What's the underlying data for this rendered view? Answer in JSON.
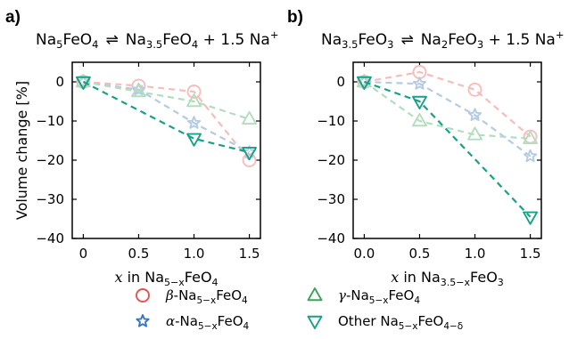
{
  "panels": [
    {
      "letter": "a)",
      "title_lhs": {
        "base": "Na",
        "sub1": "5",
        "rest": "FeO",
        "sub2": "4"
      },
      "title_arrow": "⇌",
      "title_rhs": {
        "base": "Na",
        "sub1": "3.5",
        "rest": "FeO",
        "sub2": "4",
        "tail": "+ 1.5 Na",
        "sup": "+"
      },
      "xlabel": {
        "italic": "x",
        "pre": " in Na",
        "sub": "5−x",
        "post": "FeO",
        "sub2": "4"
      },
      "ylabel": "Volume change [%]"
    },
    {
      "letter": "b)",
      "title_lhs": {
        "base": "Na",
        "sub1": "3.5",
        "rest": "FeO",
        "sub2": "3"
      },
      "title_arrow": "⇌",
      "title_rhs": {
        "base": "Na",
        "sub1": "2",
        "rest": "FeO",
        "sub2": "3",
        "tail": "+ 1.5 Na",
        "sup": "+"
      },
      "xlabel": {
        "italic": "x",
        "pre": " in Na",
        "sub": "3.5−x",
        "post": "FeO",
        "sub2": "3"
      },
      "ylabel": ""
    }
  ],
  "legend": [
    {
      "greek": "β",
      "base": "-Na",
      "sub": "5−x",
      "rest": "FeO",
      "sub2": "4",
      "extra": "",
      "marker": "circle"
    },
    {
      "greek": "γ",
      "base": "-Na",
      "sub": "5−x",
      "rest": "FeO",
      "sub2": "4",
      "extra": "",
      "marker": "triangle-up"
    },
    {
      "greek": "α",
      "base": "-Na",
      "sub": "5−x",
      "rest": "FeO",
      "sub2": "4",
      "extra": "",
      "marker": "star"
    },
    {
      "greek": "",
      "base": "Other Na",
      "sub": "5−x",
      "rest": "FeO",
      "sub2": "4−δ",
      "extra": "",
      "marker": "triangle-down"
    }
  ],
  "chart_data": [
    {
      "type": "line",
      "panel": "a)",
      "xlim": [
        -0.1,
        1.6
      ],
      "ylim": [
        -40,
        5
      ],
      "xticks": [
        0,
        0.5,
        1.0,
        1.5
      ],
      "xtick_labels": [
        "0",
        "0.5",
        "1.0",
        "1.5"
      ],
      "yticks": [
        0,
        -10,
        -20,
        -30,
        -40
      ],
      "ytick_labels": [
        "0",
        "−10",
        "−20",
        "−30",
        "−40"
      ],
      "series": [
        {
          "name": "β-Na5−xFeO4",
          "marker": "circle",
          "color": "#e8514e",
          "faded": true,
          "x": [
            0,
            0.5,
            1.0,
            1.5
          ],
          "y": [
            0,
            -1.0,
            -2.5,
            -20.0
          ]
        },
        {
          "name": "α-Na5−xFeO4",
          "marker": "star",
          "color": "#3a74bd",
          "faded": true,
          "x": [
            0,
            0.5,
            1.0,
            1.5
          ],
          "y": [
            0,
            -2.0,
            -10.5,
            -18.0
          ]
        },
        {
          "name": "γ-Na5−xFeO4",
          "marker": "triangle-up",
          "color": "#3aa55a",
          "faded": true,
          "x": [
            0,
            0.5,
            1.0,
            1.5
          ],
          "y": [
            0,
            -2.5,
            -5.0,
            -9.5
          ]
        },
        {
          "name": "Other Na5−xFeO4−δ",
          "marker": "triangle-down",
          "color": "#17a288",
          "faded": false,
          "x": [
            0,
            1.0,
            1.5
          ],
          "y": [
            0,
            -14.5,
            -18.0
          ]
        }
      ]
    },
    {
      "type": "line",
      "panel": "b)",
      "xlim": [
        -0.1,
        1.6
      ],
      "ylim": [
        -40,
        5
      ],
      "xticks": [
        0,
        0.5,
        1.0,
        1.5
      ],
      "xtick_labels": [
        "0.0",
        "0.5",
        "1.0",
        "1.5"
      ],
      "yticks": [
        0,
        -10,
        -20,
        -30,
        -40
      ],
      "ytick_labels": [
        "0",
        "−10",
        "−20",
        "−30",
        "−40"
      ],
      "series": [
        {
          "name": "β-Na5−xFeO4",
          "marker": "circle",
          "color": "#e8514e",
          "faded": true,
          "x": [
            0,
            0.5,
            1.0,
            1.5
          ],
          "y": [
            0,
            2.5,
            -2.0,
            -14.0
          ]
        },
        {
          "name": "α-Na5−xFeO4",
          "marker": "star",
          "color": "#3a74bd",
          "faded": true,
          "x": [
            0,
            0.5,
            1.0,
            1.5
          ],
          "y": [
            0,
            -0.5,
            -8.5,
            -19.0
          ]
        },
        {
          "name": "γ-Na5−xFeO4",
          "marker": "triangle-up",
          "color": "#3aa55a",
          "faded": true,
          "x": [
            0,
            0.5,
            1.0,
            1.5
          ],
          "y": [
            0,
            -10.0,
            -13.5,
            -14.5
          ]
        },
        {
          "name": "Other Na5−xFeO4−δ",
          "marker": "triangle-down",
          "color": "#17a288",
          "faded": false,
          "x": [
            0,
            0.5,
            1.5
          ],
          "y": [
            0,
            -5.0,
            -34.5
          ]
        }
      ]
    }
  ]
}
